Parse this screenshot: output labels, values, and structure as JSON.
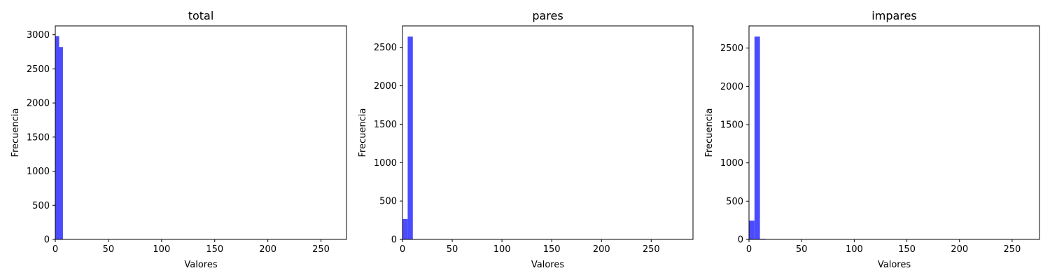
{
  "bar_color": "#4B4BFF",
  "chart_data": [
    {
      "type": "bar",
      "title": "total",
      "xlabel": "Valores",
      "ylabel": "Frecuencia",
      "xlim": [
        0,
        274
      ],
      "ylim": [
        0,
        3130
      ],
      "xticks": [
        0,
        50,
        100,
        150,
        200,
        250
      ],
      "yticks": [
        0,
        500,
        1000,
        1500,
        2000,
        2500,
        3000
      ],
      "bins": [
        {
          "x0": 0,
          "x1": 3.6,
          "count": 2980
        },
        {
          "x0": 3.6,
          "x1": 7.2,
          "count": 2820
        }
      ]
    },
    {
      "type": "bar",
      "title": "pares",
      "xlabel": "Valores",
      "ylabel": "Frecuencia",
      "xlim": [
        0,
        292
      ],
      "ylim": [
        0,
        2780
      ],
      "xticks": [
        0,
        50,
        100,
        150,
        200,
        250
      ],
      "yticks": [
        0,
        500,
        1000,
        1500,
        2000,
        2500
      ],
      "bins": [
        {
          "x0": 0,
          "x1": 5.2,
          "count": 265
        },
        {
          "x0": 5.2,
          "x1": 10.4,
          "count": 2640
        }
      ]
    },
    {
      "type": "bar",
      "title": "impares",
      "xlabel": "Valores",
      "ylabel": "Frecuencia",
      "xlim": [
        0,
        276
      ],
      "ylim": [
        0,
        2790
      ],
      "xticks": [
        0,
        50,
        100,
        150,
        200,
        250
      ],
      "yticks": [
        0,
        500,
        1000,
        1500,
        2000,
        2500
      ],
      "bins": [
        {
          "x0": 0,
          "x1": 5.2,
          "count": 245
        },
        {
          "x0": 5.2,
          "x1": 10.4,
          "count": 2650
        },
        {
          "x0": 10.4,
          "x1": 15.6,
          "count": 8
        }
      ]
    }
  ]
}
